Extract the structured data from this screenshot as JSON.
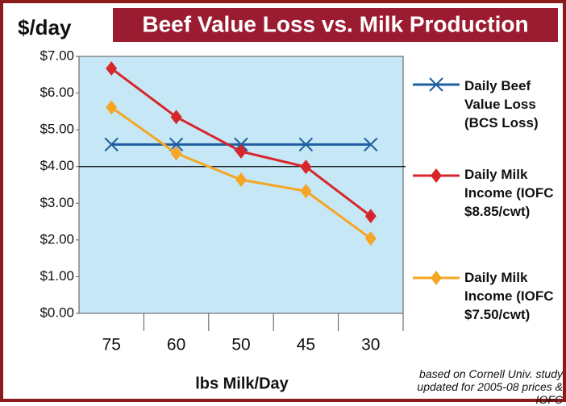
{
  "chart_data": {
    "type": "line",
    "title": "Beef Value Loss vs. Milk Production",
    "y_label": "$/day",
    "x_label": "lbs Milk/Day",
    "note": "based on Cornell Univ. study updated for 2005-08 prices & IOFC",
    "categories": [
      "75",
      "60",
      "50",
      "45",
      "30"
    ],
    "series": [
      {
        "name": "Daily Beef Value Loss (BCS Loss)",
        "color": "#1f5fa0",
        "marker": "x",
        "values": [
          4.6,
          4.6,
          4.6,
          4.6,
          4.6
        ]
      },
      {
        "name": "Daily Milk Income (IOFC $8.85/cwt)",
        "color": "#d7262b",
        "marker": "diamond",
        "values": [
          6.67,
          5.35,
          4.41,
          3.99,
          2.65
        ]
      },
      {
        "name": "Daily Milk Income (IOFC $7.50/cwt)",
        "color": "#f5a623",
        "marker": "diamond",
        "values": [
          5.61,
          4.36,
          3.64,
          3.33,
          2.04
        ]
      }
    ],
    "ylim": [
      0,
      7
    ],
    "yticks": [
      {
        "value": 0,
        "label": "$0.00"
      },
      {
        "value": 1,
        "label": "$1.00"
      },
      {
        "value": 2,
        "label": "$2.00"
      },
      {
        "value": 3,
        "label": "$3.00"
      },
      {
        "value": 4,
        "label": "$4.00"
      },
      {
        "value": 5,
        "label": "$5.00"
      },
      {
        "value": 6,
        "label": "$6.00"
      },
      {
        "value": 7,
        "label": "$7.00"
      }
    ],
    "reference_line": 4,
    "plot_color": "#c6e7f6"
  }
}
